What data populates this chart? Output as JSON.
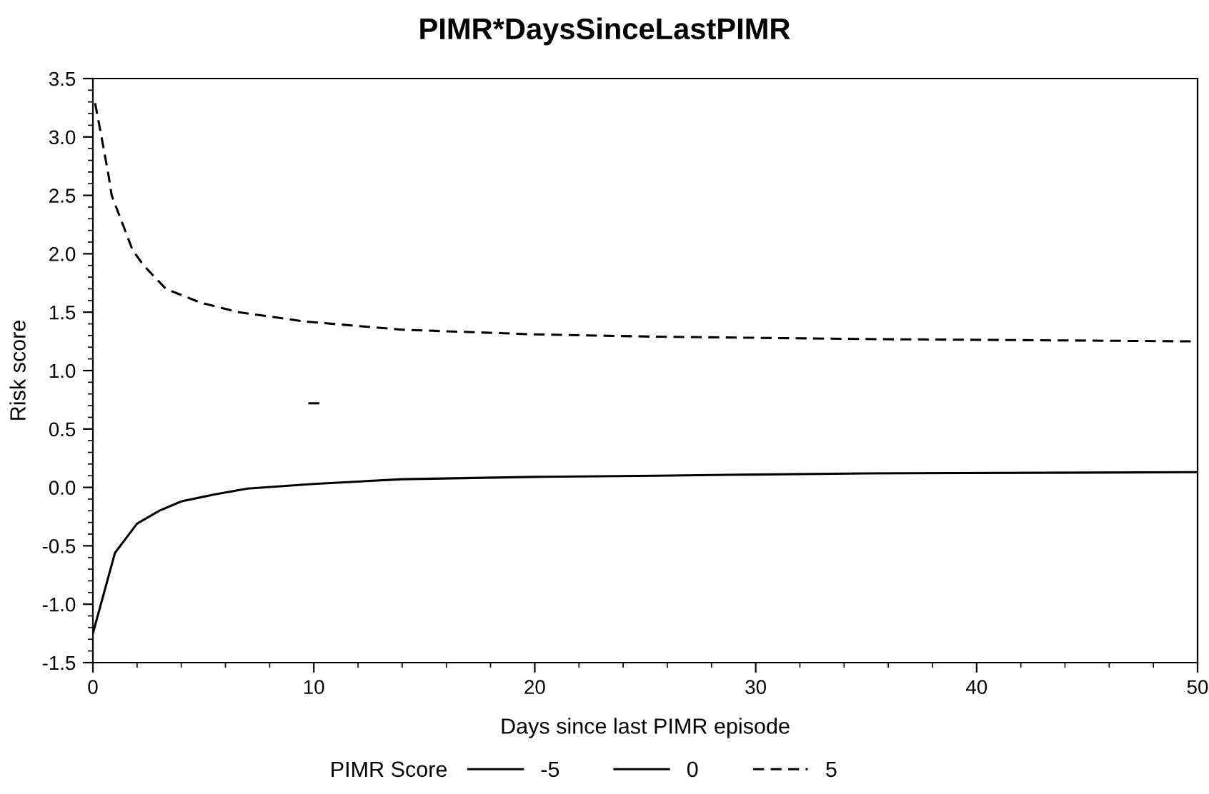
{
  "chart_data": {
    "type": "line",
    "title": "PIMR*DaysSinceLastPIMR",
    "xlabel": "Days since last PIMR episode",
    "ylabel": "Risk score",
    "legend_title": "PIMR Score",
    "legend": "bottom",
    "grid": false,
    "xlim": [
      0,
      50
    ],
    "xticks": [
      0,
      10,
      20,
      30,
      40,
      50
    ],
    "ylim": [
      -1.5,
      3.5
    ],
    "yticks": [
      {
        "value": 3.5,
        "label": "3.5"
      },
      {
        "value": 3.0,
        "label": "3.0"
      },
      {
        "value": 2.5,
        "label": "2.5"
      },
      {
        "value": 2.0,
        "label": "2.0"
      },
      {
        "value": 1.5,
        "label": "1.5"
      },
      {
        "value": 1.0,
        "label": "1.0"
      },
      {
        "value": 0.5,
        "label": "0.5"
      },
      {
        "value": 0.0,
        "label": "0.0"
      },
      {
        "value": -0.5,
        "label": "-0.5"
      },
      {
        "value": -1.0,
        "label": "-1.0"
      },
      {
        "value": -1.5,
        "label": "-1.5"
      }
    ],
    "series": [
      {
        "name": "-5",
        "color": "#000000",
        "line_style": "solid",
        "x": [
          0,
          1,
          2,
          3,
          4,
          5.5,
          7,
          10,
          14,
          20,
          25.5,
          30,
          35,
          50
        ],
        "values": [
          -1.25,
          -0.56,
          -0.31,
          -0.2,
          -0.12,
          -0.06,
          -0.01,
          0.03,
          0.07,
          0.09,
          0.1,
          0.11,
          0.12,
          0.13
        ]
      },
      {
        "name": "0",
        "color": "#000000",
        "line_style": "solid",
        "x": [
          9.8,
          10.2
        ],
        "values": [
          0.72,
          0.72
        ]
      },
      {
        "name": "5",
        "color": "#000000",
        "line_style": "dashed",
        "x": [
          0.1,
          0.4,
          0.7,
          0.85,
          1.8,
          2.3,
          3.3,
          4.9,
          6.6,
          9.6,
          14,
          20,
          25.5,
          35,
          50
        ],
        "values": [
          3.29,
          2.99,
          2.68,
          2.5,
          2.03,
          1.9,
          1.7,
          1.58,
          1.5,
          1.42,
          1.35,
          1.31,
          1.29,
          1.27,
          1.25
        ]
      }
    ]
  }
}
